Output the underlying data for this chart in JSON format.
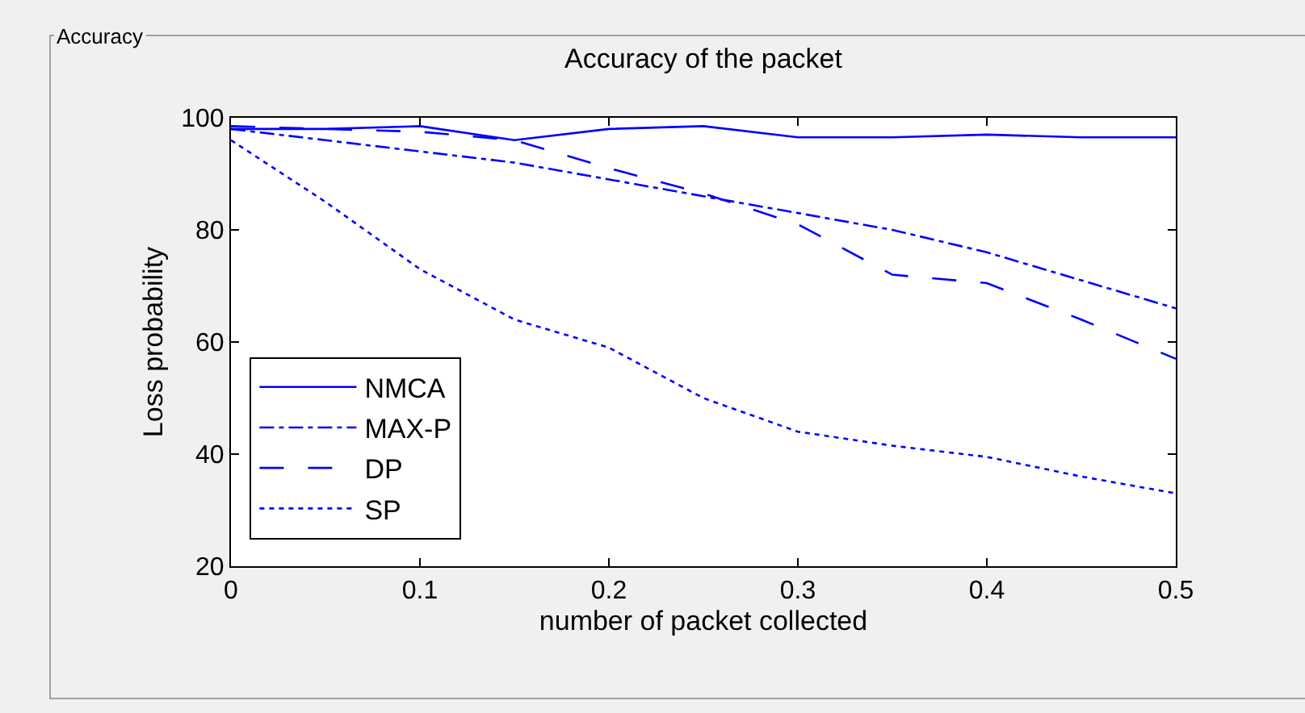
{
  "chart_data": {
    "type": "line",
    "title": "Accuracy of the packet",
    "xlabel": "number of packet collected",
    "ylabel": "Loss probability",
    "annotations": [
      "Accuracy"
    ],
    "x": [
      0,
      0.05,
      0.1,
      0.15,
      0.2,
      0.25,
      0.3,
      0.35,
      0.4,
      0.45,
      0.5
    ],
    "series": [
      {
        "name": "NMCA",
        "color": "#0000ff",
        "line_style": "solid",
        "values": [
          98,
          98,
          98.5,
          96,
          98,
          98.5,
          96.5,
          96.5,
          97,
          96.5,
          96.5
        ]
      },
      {
        "name": "MAX-P",
        "color": "#0000ff",
        "line_style": "dashdot",
        "values": [
          98,
          96,
          94,
          92,
          89,
          86,
          83,
          80,
          76,
          71,
          66
        ]
      },
      {
        "name": "DP",
        "color": "#0000ff",
        "line_style": "dashed",
        "values": [
          98.5,
          98,
          97.5,
          96,
          91,
          86.5,
          81,
          72,
          70.5,
          64,
          57
        ]
      },
      {
        "name": "SP",
        "color": "#0000ff",
        "line_style": "dotted",
        "values": [
          96,
          85,
          73,
          64,
          59,
          50,
          44,
          41.5,
          39.5,
          36,
          33
        ]
      }
    ],
    "xlim": [
      0,
      0.5
    ],
    "xticks": [
      0,
      0.1,
      0.2,
      0.3,
      0.4,
      0.5
    ],
    "ylim": [
      20,
      100
    ],
    "yticks": [
      20,
      40,
      60,
      80,
      100
    ],
    "legend": "bottom left",
    "marker": "none"
  }
}
